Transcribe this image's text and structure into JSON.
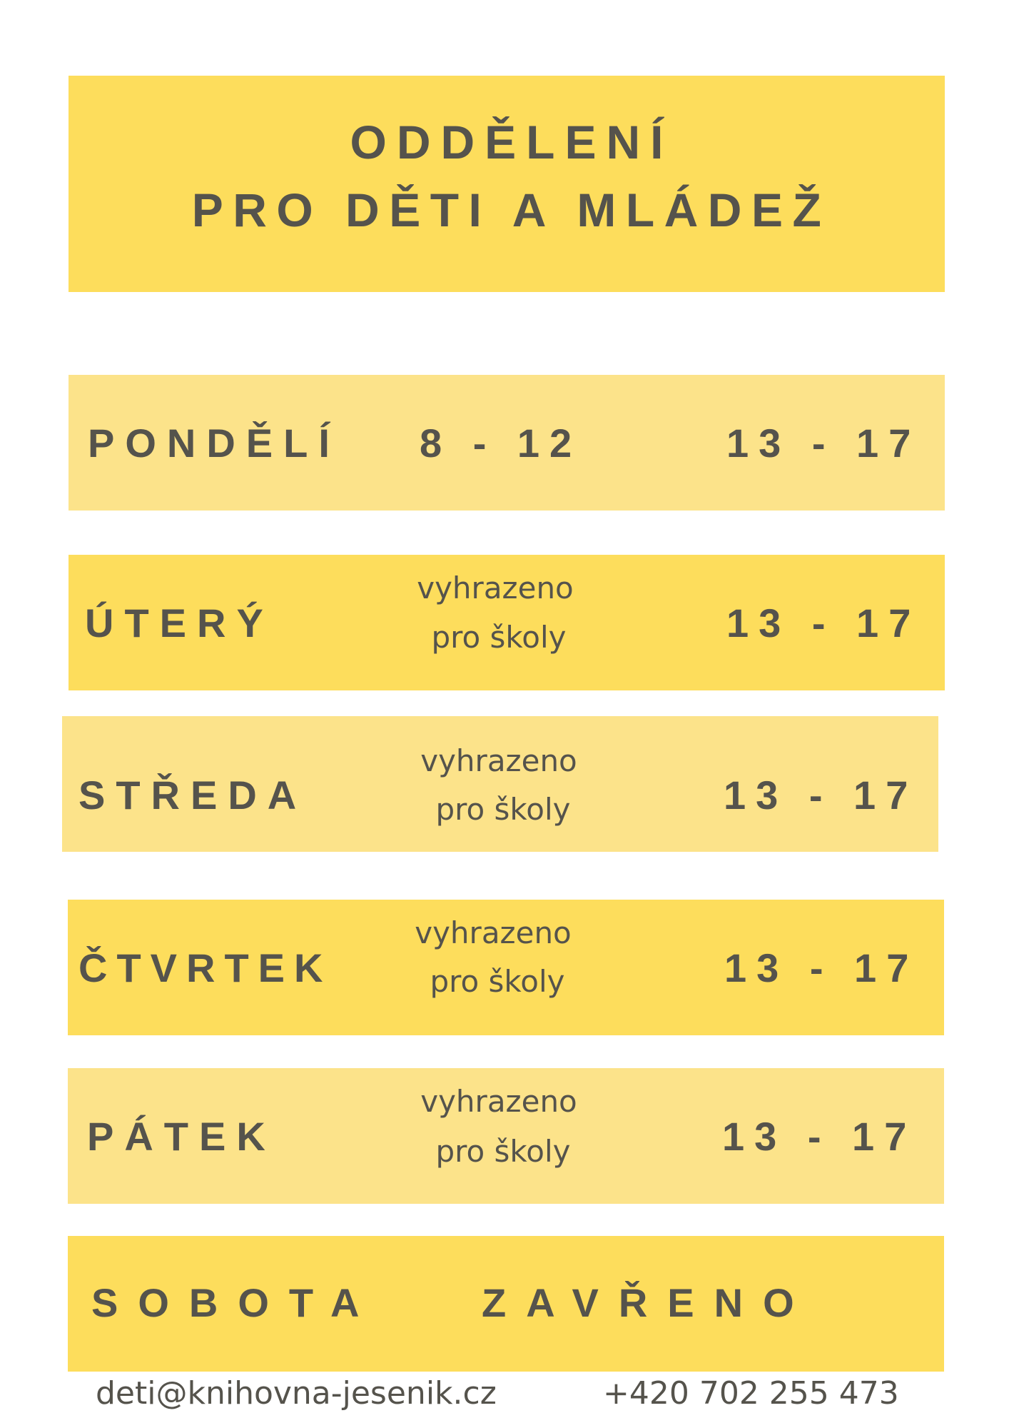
{
  "header": {
    "line1": "ODDĚLENÍ",
    "line2": "PRO DĚTI A MLÁDEŽ"
  },
  "schedule": [
    {
      "day": "PONDĚLÍ",
      "morning": "8 - 12",
      "afternoon": "13 - 17"
    },
    {
      "day": "ÚTERÝ",
      "morning_note_1": "vyhrazeno",
      "morning_note_2": "pro školy",
      "afternoon": "13 - 17"
    },
    {
      "day": "STŘEDA",
      "morning_note_1": "vyhrazeno",
      "morning_note_2": "pro školy",
      "afternoon": "13 - 17"
    },
    {
      "day": "ČTVRTEK",
      "morning_note_1": "vyhrazeno",
      "morning_note_2": "pro školy",
      "afternoon": "13 - 17"
    },
    {
      "day": "PÁTEK",
      "morning_note_1": "vyhrazeno",
      "morning_note_2": "pro školy",
      "afternoon": "13 - 17"
    },
    {
      "day": "SOBOTA",
      "status": "ZAVŘENO"
    }
  ],
  "footer": {
    "email": "deti@knihovna-jesenik.cz",
    "phone": "+420 702 255 473"
  },
  "colors": {
    "band_strong": "#fddd5c",
    "band_light": "#fce38a",
    "text": "#55534c"
  }
}
